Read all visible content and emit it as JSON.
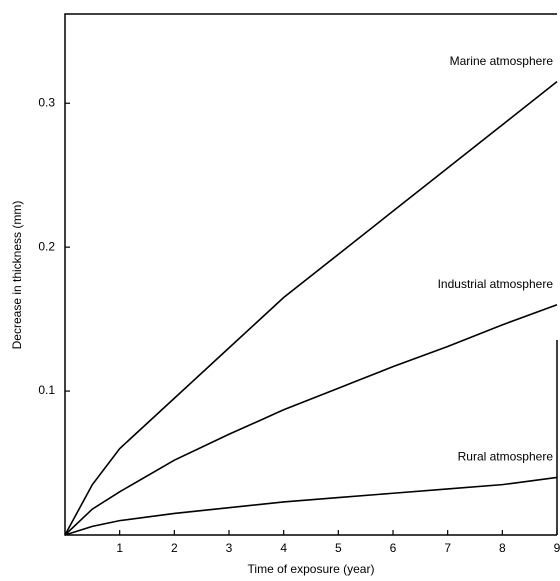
{
  "chart_data": {
    "type": "line",
    "x_label": "Time of exposure (year)",
    "y_label": "Decrease in thickness (mm)",
    "x": [
      0,
      0.5,
      1,
      2,
      3,
      4,
      5,
      6,
      7,
      8,
      9
    ],
    "series": [
      {
        "name": "Marine atmosphere",
        "color": "#000000",
        "values": [
          0,
          0.035,
          0.06,
          0.095,
          0.13,
          0.165,
          0.195,
          0.225,
          0.255,
          0.285,
          0.315
        ]
      },
      {
        "name": "Industrial atmosphere",
        "color": "#000000",
        "values": [
          0,
          0.018,
          0.03,
          0.052,
          0.07,
          0.087,
          0.102,
          0.117,
          0.131,
          0.146,
          0.16
        ]
      },
      {
        "name": "Rural atmosphere",
        "color": "#000000",
        "values": [
          0,
          0.006,
          0.01,
          0.015,
          0.019,
          0.023,
          0.026,
          0.029,
          0.032,
          0.035,
          0.04
        ]
      }
    ],
    "xlim": [
      0,
      9
    ],
    "xticks": [
      1,
      2,
      3,
      4,
      5,
      6,
      7,
      8,
      9
    ],
    "ylim": [
      0,
      0.362
    ],
    "yticks": [
      0.1,
      0.2,
      0.3
    ],
    "grid": false
  }
}
